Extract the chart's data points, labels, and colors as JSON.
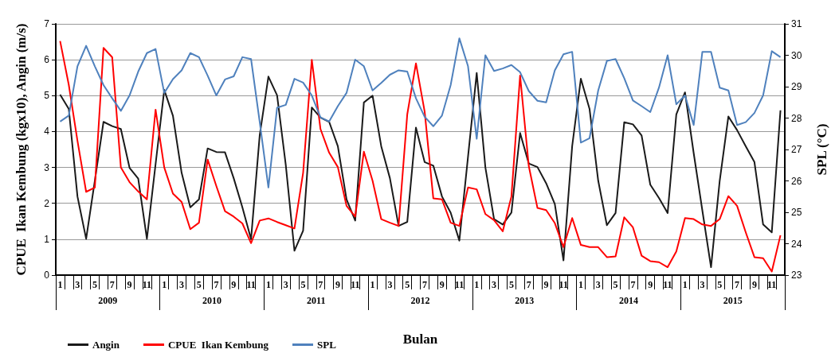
{
  "chart_data": {
    "type": "line",
    "xlabel": "Bulan",
    "ylabel": "CPUE  Ikan Kembung (kgx10), Angin (m/s)",
    "y2label": "SPL (°C)",
    "categories": [
      "1",
      null,
      "3",
      null,
      "5",
      null,
      "7",
      null,
      "9",
      null,
      "11",
      null,
      "1",
      null,
      "3",
      null,
      "5",
      null,
      "7",
      null,
      "9",
      null,
      "11",
      null,
      "1",
      null,
      "3",
      null,
      "5",
      null,
      "7",
      null,
      "9",
      null,
      "11",
      null,
      "1",
      null,
      "3",
      null,
      "5",
      null,
      "7",
      null,
      "9",
      null,
      "11",
      null,
      "1",
      null,
      "3",
      null,
      "5",
      null,
      "7",
      null,
      "9",
      null,
      "11",
      null,
      "1",
      null,
      "3",
      null,
      "5",
      null,
      "7",
      null,
      "9",
      null,
      "11",
      null,
      "1",
      null,
      "3",
      null,
      "5",
      null,
      "7",
      null,
      "9",
      null,
      "11",
      null
    ],
    "annotations": [
      "2009",
      "2010",
      "2011",
      "2012",
      "2013",
      "2014",
      "2015"
    ],
    "series": [
      {
        "name": "Angin",
        "color": "#1a1a1a",
        "values": [
          5.03,
          4.63,
          2.19,
          1.01,
          2.63,
          4.27,
          4.15,
          4.07,
          2.99,
          2.69,
          1.01,
          3.09,
          5.16,
          4.44,
          2.85,
          1.89,
          2.11,
          3.53,
          3.43,
          3.42,
          2.7,
          1.89,
          1.0,
          3.9,
          5.53,
          5.01,
          3.07,
          0.68,
          1.24,
          4.67,
          4.39,
          4.27,
          3.59,
          2.11,
          1.52,
          4.81,
          5.0,
          3.59,
          2.7,
          1.37,
          1.48,
          4.11,
          3.15,
          3.05,
          2.19,
          1.74,
          0.96,
          3.3,
          5.63,
          3.0,
          1.56,
          1.41,
          1.74,
          3.96,
          3.11,
          3.01,
          2.56,
          1.98,
          0.41,
          3.59,
          5.47,
          4.63,
          2.63,
          1.39,
          1.73,
          4.26,
          4.2,
          3.89,
          2.52,
          2.15,
          1.73,
          4.48,
          5.09,
          3.4,
          1.8,
          0.22,
          2.63,
          4.42,
          4.04,
          3.59,
          3.15,
          1.41,
          1.19,
          4.59
        ]
      },
      {
        "name": "CPUE  Ikan Kembung",
        "color": "#ff0000",
        "values": [
          6.52,
          5.3,
          3.74,
          2.32,
          2.44,
          6.33,
          6.07,
          3.0,
          2.59,
          2.33,
          2.11,
          4.61,
          3.0,
          2.27,
          2.04,
          1.28,
          1.46,
          3.22,
          2.48,
          1.78,
          1.63,
          1.44,
          0.89,
          1.52,
          1.58,
          1.48,
          1.39,
          1.3,
          2.85,
          6.0,
          4.07,
          3.41,
          3.01,
          1.93,
          1.63,
          3.44,
          2.63,
          1.56,
          1.46,
          1.37,
          4.48,
          5.9,
          4.56,
          2.14,
          2.11,
          1.46,
          1.37,
          2.44,
          2.39,
          1.7,
          1.53,
          1.22,
          2.19,
          5.56,
          3.04,
          1.87,
          1.81,
          1.45,
          0.78,
          1.59,
          0.84,
          0.78,
          0.78,
          0.5,
          0.52,
          1.61,
          1.33,
          0.54,
          0.39,
          0.36,
          0.22,
          0.66,
          1.59,
          1.56,
          1.41,
          1.37,
          1.56,
          2.2,
          1.93,
          1.19,
          0.5,
          0.47,
          0.1,
          1.11
        ]
      },
      {
        "name": "SPL",
        "color": "#4f81bd",
        "axis": "y2",
        "values": [
          27.89,
          28.08,
          29.65,
          30.3,
          29.65,
          29.05,
          28.63,
          28.23,
          28.72,
          29.48,
          30.07,
          30.2,
          28.8,
          29.24,
          29.52,
          30.07,
          29.94,
          29.35,
          28.72,
          29.23,
          29.33,
          29.94,
          29.88,
          27.87,
          25.79,
          28.33,
          28.42,
          29.25,
          29.13,
          28.72,
          28.02,
          27.89,
          28.38,
          28.8,
          29.86,
          29.65,
          28.88,
          29.12,
          29.38,
          29.52,
          29.48,
          28.63,
          28.04,
          27.74,
          28.08,
          29.05,
          30.54,
          29.65,
          27.34,
          30.0,
          29.5,
          29.58,
          29.69,
          29.46,
          28.86,
          28.55,
          28.5,
          29.52,
          30.03,
          30.11,
          27.22,
          27.36,
          28.88,
          29.82,
          29.88,
          29.27,
          28.56,
          28.38,
          28.19,
          28.97,
          30.0,
          28.44,
          28.72,
          27.78,
          30.11,
          30.11,
          28.97,
          28.88,
          27.78,
          27.87,
          28.16,
          28.72,
          30.13,
          29.94
        ]
      }
    ],
    "ylim": [
      0,
      7
    ],
    "yticks": [
      0,
      1,
      2,
      3,
      4,
      5,
      6,
      7
    ],
    "y2lim": [
      23,
      31
    ],
    "y2ticks": [
      23,
      24,
      25,
      26,
      27,
      28,
      29,
      30,
      31
    ],
    "grid": "y",
    "legend": "bottom left",
    "marker": "none",
    "line_style": "solid"
  }
}
